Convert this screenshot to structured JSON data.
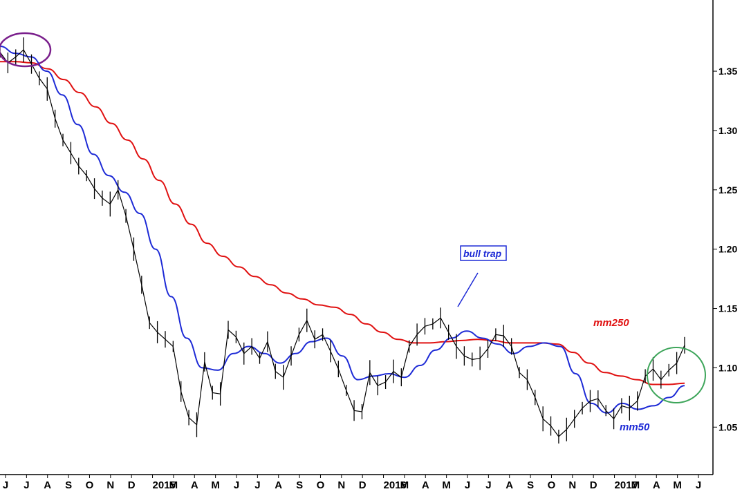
{
  "chart_data": {
    "type": "line",
    "title": "",
    "xlabel": "",
    "ylabel": "",
    "ylim": [
      1.01,
      1.41
    ],
    "y_ticks": [
      "1.05",
      "1.10",
      "1.15",
      "1.20",
      "1.25",
      "1.30",
      "1.35"
    ],
    "x_ticks": [
      "J",
      "J",
      "A",
      "S",
      "O",
      "N",
      "D",
      "2015",
      "M",
      "A",
      "M",
      "J",
      "J",
      "A",
      "S",
      "O",
      "N",
      "D",
      "2016",
      "M",
      "A",
      "M",
      "J",
      "J",
      "A",
      "S",
      "O",
      "N",
      "D",
      "2017",
      "M",
      "A",
      "M",
      "J"
    ],
    "grid": false,
    "y_axis_side": "right",
    "series": [
      {
        "name": "mm250",
        "color": "#e01010",
        "values": [
          1.358,
          1.358,
          1.357,
          1.352,
          1.343,
          1.332,
          1.32,
          1.306,
          1.292,
          1.276,
          1.258,
          1.238,
          1.221,
          1.205,
          1.194,
          1.185,
          1.177,
          1.17,
          1.163,
          1.158,
          1.153,
          1.151,
          1.145,
          1.137,
          1.13,
          1.124,
          1.121,
          1.121,
          1.122,
          1.123,
          1.124,
          1.123,
          1.121,
          1.121,
          1.121,
          1.12,
          1.113,
          1.104,
          1.096,
          1.093,
          1.09,
          1.086,
          1.086,
          1.087
        ]
      },
      {
        "name": "mm50",
        "color": "#1d2ad6",
        "values": [
          1.371,
          1.365,
          1.362,
          1.35,
          1.33,
          1.305,
          1.28,
          1.262,
          1.248,
          1.23,
          1.2,
          1.16,
          1.125,
          1.1,
          1.098,
          1.112,
          1.118,
          1.112,
          1.104,
          1.112,
          1.122,
          1.125,
          1.11,
          1.09,
          1.093,
          1.095,
          1.092,
          1.102,
          1.115,
          1.125,
          1.131,
          1.125,
          1.12,
          1.112,
          1.118,
          1.121,
          1.118,
          1.095,
          1.07,
          1.062,
          1.07,
          1.065,
          1.068,
          1.075,
          1.085
        ]
      },
      {
        "name": "",
        "color": "#000000",
        "values": [
          1.366,
          1.357,
          1.362,
          1.368,
          1.356,
          1.344,
          1.335,
          1.31,
          1.292,
          1.281,
          1.27,
          1.262,
          1.251,
          1.243,
          1.238,
          1.25,
          1.228,
          1.2,
          1.17,
          1.138,
          1.13,
          1.124,
          1.118,
          1.08,
          1.058,
          1.052,
          1.105,
          1.079,
          1.078,
          1.132,
          1.126,
          1.112,
          1.118,
          1.108,
          1.122,
          1.097,
          1.092,
          1.11,
          1.128,
          1.14,
          1.124,
          1.128,
          1.114,
          1.099,
          1.081,
          1.064,
          1.063,
          1.096,
          1.085,
          1.088,
          1.097,
          1.092,
          1.118,
          1.128,
          1.135,
          1.137,
          1.142,
          1.13,
          1.118,
          1.11,
          1.107,
          1.108,
          1.116,
          1.128,
          1.127,
          1.118,
          1.096,
          1.09,
          1.075,
          1.057,
          1.051,
          1.042,
          1.048,
          1.057,
          1.066,
          1.072,
          1.074,
          1.064,
          1.057,
          1.068,
          1.066,
          1.072,
          1.093,
          1.099,
          1.09,
          1.098,
          1.104,
          1.119
        ]
      }
    ],
    "annotations": [
      "mm250",
      "mm50",
      "bull trap"
    ]
  }
}
